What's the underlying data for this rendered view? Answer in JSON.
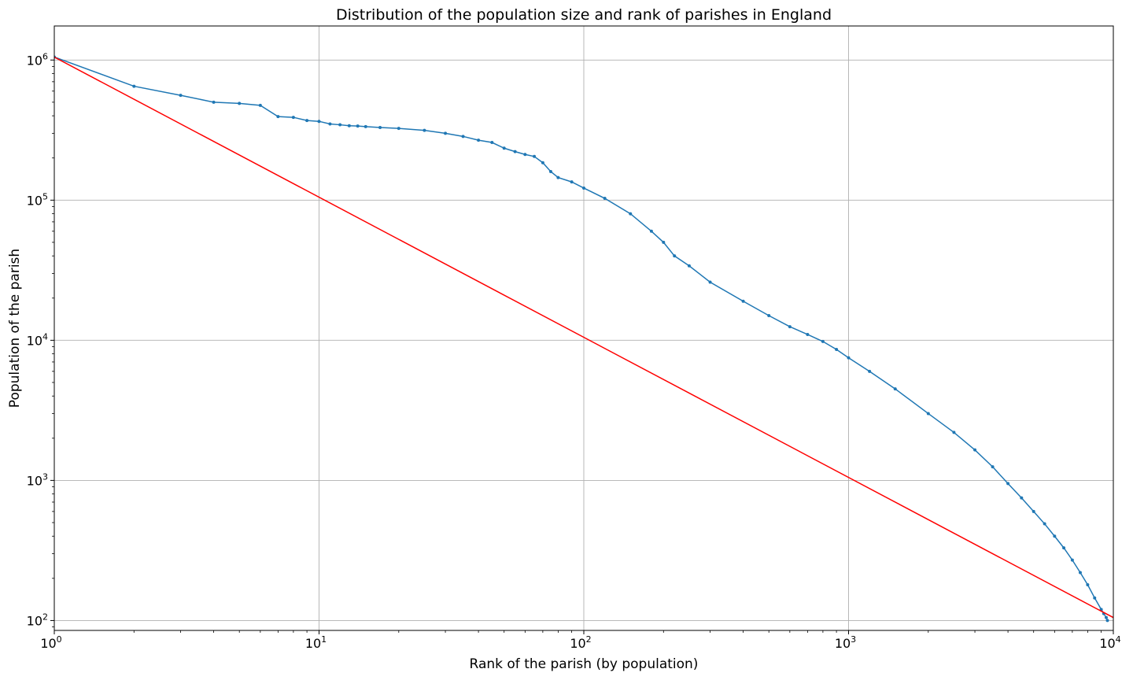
{
  "chart_data": {
    "type": "line",
    "title": "Distribution of the population size and rank of parishes in England",
    "xlabel": "Rank of the parish (by population)",
    "ylabel": "Population of the parish",
    "xscale": "log",
    "yscale": "log",
    "xlim": [
      1,
      10000
    ],
    "ylim": [
      85,
      1750000
    ],
    "x_ticks": [
      {
        "value": 1,
        "base": "10",
        "exp": "0"
      },
      {
        "value": 10,
        "base": "10",
        "exp": "1"
      },
      {
        "value": 100,
        "base": "10",
        "exp": "2"
      },
      {
        "value": 1000,
        "base": "10",
        "exp": "3"
      },
      {
        "value": 10000,
        "base": "10",
        "exp": "4"
      }
    ],
    "y_ticks": [
      {
        "value": 100,
        "base": "10",
        "exp": "2"
      },
      {
        "value": 1000,
        "base": "10",
        "exp": "3"
      },
      {
        "value": 10000,
        "base": "10",
        "exp": "4"
      },
      {
        "value": 100000,
        "base": "10",
        "exp": "5"
      },
      {
        "value": 1000000,
        "base": "10",
        "exp": "6"
      }
    ],
    "grid": true,
    "series": [
      {
        "color": "#1f77b4",
        "marker": "dot",
        "x": [
          1,
          2,
          3,
          4,
          5,
          6,
          7,
          8,
          9,
          10,
          11,
          12,
          13,
          14,
          15,
          17,
          20,
          25,
          30,
          35,
          40,
          45,
          50,
          55,
          60,
          65,
          70,
          75,
          80,
          90,
          100,
          120,
          150,
          180,
          200,
          220,
          250,
          300,
          400,
          500,
          600,
          700,
          800,
          900,
          1000,
          1200,
          1500,
          2000,
          2500,
          3000,
          3500,
          4000,
          4500,
          5000,
          5500,
          6000,
          6500,
          7000,
          7500,
          8000,
          8500,
          9000,
          9200,
          9400,
          9500
        ],
        "y": [
          1050000,
          650000,
          560000,
          500000,
          490000,
          475000,
          395000,
          390000,
          370000,
          365000,
          350000,
          345000,
          340000,
          338000,
          335000,
          330000,
          325000,
          315000,
          300000,
          285000,
          268000,
          258000,
          235000,
          222000,
          212000,
          205000,
          185000,
          160000,
          145000,
          135000,
          122000,
          103000,
          80000,
          60000,
          50000,
          40000,
          34000,
          26000,
          19000,
          15000,
          12500,
          11000,
          9800,
          8600,
          7500,
          6000,
          4500,
          3000,
          2200,
          1650,
          1250,
          950,
          750,
          600,
          490,
          400,
          330,
          270,
          220,
          180,
          145,
          120,
          112,
          105,
          100
        ]
      },
      {
        "color": "#ff0000",
        "marker": "none",
        "x": [
          1,
          10000
        ],
        "y": [
          1050000,
          105
        ]
      }
    ]
  }
}
